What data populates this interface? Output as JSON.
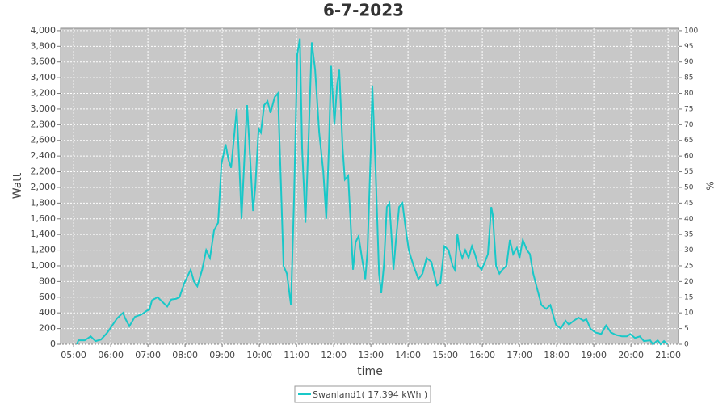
{
  "chart_data": {
    "type": "line",
    "title": "6-7-2023",
    "xlabel": "time",
    "ylabel": "Watt",
    "y2label": "%",
    "x": [
      5.09,
      5.13,
      5.3,
      5.46,
      5.59,
      5.74,
      5.91,
      6.17,
      6.33,
      6.39,
      6.5,
      6.65,
      6.83,
      6.98,
      7.04,
      7.11,
      7.26,
      7.37,
      7.52,
      7.63,
      7.76,
      7.85,
      7.98,
      8.15,
      8.24,
      8.33,
      8.46,
      8.57,
      8.67,
      8.78,
      8.89,
      8.98,
      9.09,
      9.17,
      9.24,
      9.39,
      9.46,
      9.52,
      9.61,
      9.67,
      9.76,
      9.83,
      9.89,
      9.98,
      10.04,
      10.13,
      10.22,
      10.3,
      10.41,
      10.5,
      10.57,
      10.65,
      10.74,
      10.85,
      10.93,
      11.02,
      11.09,
      11.15,
      11.24,
      11.33,
      11.41,
      11.5,
      11.61,
      11.72,
      11.8,
      11.87,
      11.93,
      12.02,
      12.09,
      12.15,
      12.24,
      12.3,
      12.39,
      12.46,
      12.52,
      12.59,
      12.67,
      12.76,
      12.85,
      12.91,
      13.0,
      13.04,
      13.13,
      13.22,
      13.28,
      13.35,
      13.43,
      13.5,
      13.61,
      13.67,
      13.76,
      13.85,
      13.93,
      14.02,
      14.15,
      14.28,
      14.39,
      14.5,
      14.63,
      14.7,
      14.78,
      14.87,
      14.98,
      15.09,
      15.2,
      15.26,
      15.33,
      15.39,
      15.46,
      15.54,
      15.63,
      15.72,
      15.8,
      15.89,
      15.98,
      16.07,
      16.15,
      16.24,
      16.28,
      16.37,
      16.46,
      16.54,
      16.65,
      16.74,
      16.83,
      16.93,
      17.0,
      17.09,
      17.2,
      17.28,
      17.37,
      17.48,
      17.59,
      17.72,
      17.83,
      17.89,
      17.98,
      18.11,
      18.24,
      18.33,
      18.46,
      18.59,
      18.72,
      18.8,
      18.91,
      19.04,
      19.2,
      19.33,
      19.46,
      19.59,
      19.76,
      19.89,
      19.98,
      20.11,
      20.24,
      20.35,
      20.52,
      20.59,
      20.72,
      20.8,
      20.89,
      20.98
    ],
    "series": [
      {
        "name": "Swanland1( 17.394 kWh )",
        "color": "#19c8c8",
        "values": [
          0,
          50,
          50,
          100,
          40,
          60,
          150,
          330,
          400,
          330,
          230,
          350,
          380,
          430,
          440,
          560,
          600,
          550,
          480,
          570,
          580,
          600,
          780,
          950,
          800,
          740,
          950,
          1200,
          1100,
          1450,
          1550,
          2300,
          2550,
          2350,
          2250,
          3000,
          2300,
          1600,
          2500,
          3050,
          2300,
          1700,
          2000,
          2750,
          2700,
          3050,
          3100,
          2950,
          3150,
          3200,
          2200,
          1000,
          900,
          500,
          1800,
          3700,
          3900,
          2500,
          1550,
          2700,
          3850,
          3500,
          2700,
          2200,
          1600,
          2500,
          3550,
          2800,
          3300,
          3500,
          2500,
          2100,
          2150,
          1500,
          950,
          1300,
          1380,
          1100,
          830,
          1200,
          2500,
          3300,
          2200,
          900,
          650,
          1000,
          1750,
          1800,
          950,
          1300,
          1750,
          1800,
          1500,
          1200,
          1000,
          830,
          900,
          1100,
          1050,
          900,
          750,
          780,
          1250,
          1200,
          1000,
          950,
          1400,
          1200,
          1100,
          1200,
          1100,
          1250,
          1150,
          1000,
          950,
          1050,
          1150,
          1750,
          1650,
          1000,
          900,
          950,
          1000,
          1330,
          1150,
          1230,
          1100,
          1330,
          1200,
          1150,
          900,
          700,
          500,
          450,
          500,
          400,
          250,
          200,
          300,
          250,
          300,
          340,
          300,
          320,
          200,
          150,
          130,
          240,
          150,
          120,
          100,
          100,
          130,
          80,
          100,
          40,
          50,
          0,
          50,
          0,
          40,
          0
        ]
      }
    ],
    "xlim": [
      4.65,
      21.28
    ],
    "xticks": [
      {
        "value": 5,
        "label": "05:00"
      },
      {
        "value": 6,
        "label": "06:00"
      },
      {
        "value": 7,
        "label": "07:00"
      },
      {
        "value": 8,
        "label": "08:00"
      },
      {
        "value": 9,
        "label": "09:00"
      },
      {
        "value": 10,
        "label": "10:00"
      },
      {
        "value": 11,
        "label": "11:00"
      },
      {
        "value": 12,
        "label": "12:00"
      },
      {
        "value": 13,
        "label": "13:00"
      },
      {
        "value": 14,
        "label": "14:00"
      },
      {
        "value": 15,
        "label": "15:00"
      },
      {
        "value": 16,
        "label": "16:00"
      },
      {
        "value": 17,
        "label": "17:00"
      },
      {
        "value": 18,
        "label": "18:00"
      },
      {
        "value": 19,
        "label": "19:00"
      },
      {
        "value": 20,
        "label": "20:00"
      },
      {
        "value": 21,
        "label": "21:00"
      }
    ],
    "ylim": [
      0,
      4030
    ],
    "yticks": [
      0,
      200,
      400,
      600,
      800,
      {
        "value": 1000,
        "label": "1,000"
      },
      {
        "value": 1200,
        "label": "1,200"
      },
      {
        "value": 1400,
        "label": "1,400"
      },
      {
        "value": 1600,
        "label": "1,600"
      },
      {
        "value": 1800,
        "label": "1,800"
      },
      {
        "value": 2000,
        "label": "2,000"
      },
      {
        "value": 2200,
        "label": "2,200"
      },
      {
        "value": 2400,
        "label": "2,400"
      },
      {
        "value": 2600,
        "label": "2,600"
      },
      {
        "value": 2800,
        "label": "2,800"
      },
      {
        "value": 3000,
        "label": "3,000"
      },
      {
        "value": 3200,
        "label": "3,200"
      },
      {
        "value": 3400,
        "label": "3,400"
      },
      {
        "value": 3600,
        "label": "3,600"
      },
      {
        "value": 3800,
        "label": "3,800"
      },
      {
        "value": 4000,
        "label": "4,000"
      }
    ],
    "y2lim": [
      0,
      100.75
    ],
    "y2ticks": [
      0,
      5,
      10,
      15,
      20,
      25,
      30,
      35,
      40,
      45,
      50,
      55,
      60,
      65,
      70,
      75,
      80,
      85,
      90,
      95,
      100
    ],
    "grid": true
  }
}
